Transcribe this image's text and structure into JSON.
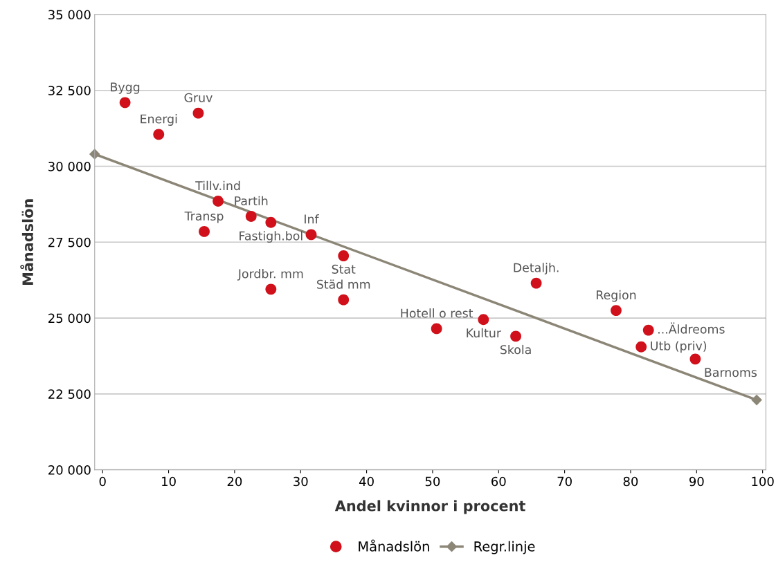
{
  "chart_data": {
    "type": "scatter",
    "xlabel": "Andel kvinnor i procent",
    "ylabel": "Månadslön",
    "xlim": [
      -1.2,
      100.5
    ],
    "ylim": [
      20000,
      35000
    ],
    "xticks": [
      0,
      10,
      20,
      30,
      40,
      50,
      60,
      70,
      80,
      90,
      100
    ],
    "yticks": [
      {
        "value": 20000,
        "label": "20 000"
      },
      {
        "value": 22500,
        "label": "22 500"
      },
      {
        "value": 25000,
        "label": "25 000"
      },
      {
        "value": 27500,
        "label": "27 500"
      },
      {
        "value": 30000,
        "label": "30 000"
      },
      {
        "value": 32500,
        "label": "32 500"
      },
      {
        "value": 35000,
        "label": "35 000"
      }
    ],
    "grid": "y",
    "legend": "bottom",
    "series": [
      {
        "name": "Månadslön",
        "color": "#d0101a",
        "marker": "circle",
        "x": [
          3.4,
          8.5,
          14.5,
          17.5,
          15.4,
          22.5,
          25.5,
          31.6,
          36.5,
          25.5,
          36.5,
          50.6,
          57.7,
          62.6,
          65.7,
          77.8,
          82.7,
          81.6,
          89.8
        ],
        "values": [
          32100,
          31050,
          31750,
          28850,
          27850,
          28350,
          28150,
          27750,
          27050,
          25950,
          25600,
          24650,
          24950,
          24400,
          26150,
          25250,
          24600,
          24050,
          23650
        ]
      },
      {
        "name": "Regr.linje",
        "type": "line",
        "color": "#8c8677",
        "marker": "diamond",
        "line_style": "solid",
        "x": [
          -1.2,
          99.1
        ],
        "values": [
          30400,
          22300
        ]
      }
    ],
    "annotations": [
      {
        "text": "Bygg",
        "x": 3.4,
        "y": 32100
      },
      {
        "text": "Energi",
        "x": 8.5,
        "y": 31050
      },
      {
        "text": "Gruv",
        "x": 14.5,
        "y": 31750
      },
      {
        "text": "Tillv.ind",
        "x": 17.5,
        "y": 28850
      },
      {
        "text": "Transp",
        "x": 15.4,
        "y": 27850
      },
      {
        "text": "Partih",
        "x": 22.5,
        "y": 28350
      },
      {
        "text": "Fastigh.bol",
        "x": 25.5,
        "y": 28150
      },
      {
        "text": "Inf",
        "x": 31.6,
        "y": 27750
      },
      {
        "text": "Stat",
        "x": 36.5,
        "y": 27050
      },
      {
        "text": "Jordbr. mm",
        "x": 25.5,
        "y": 25950
      },
      {
        "text": "Städ mm",
        "x": 36.5,
        "y": 25600
      },
      {
        "text": "Hotell o rest",
        "x": 50.6,
        "y": 24650
      },
      {
        "text": "Kultur",
        "x": 57.7,
        "y": 24950
      },
      {
        "text": "Skola",
        "x": 62.6,
        "y": 24400
      },
      {
        "text": "Detaljh.",
        "x": 65.7,
        "y": 26150
      },
      {
        "text": "Region",
        "x": 77.8,
        "y": 25250
      },
      {
        "text": "...Äldreoms",
        "x": 82.7,
        "y": 24600
      },
      {
        "text": "Utb (priv)",
        "x": 81.6,
        "y": 24050
      },
      {
        "text": "Barnoms",
        "x": 89.8,
        "y": 23650
      }
    ]
  }
}
